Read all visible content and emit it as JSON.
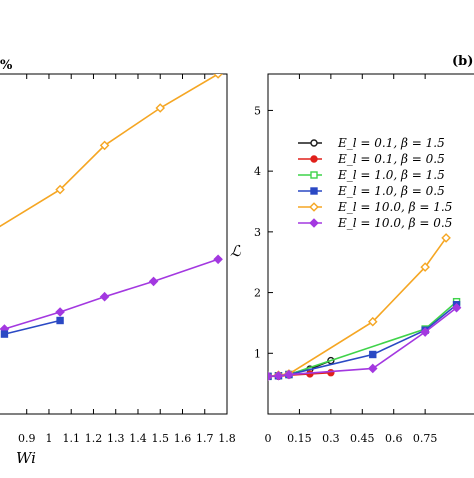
{
  "chart_data": [
    {
      "panel": "a",
      "type": "line",
      "title": "%",
      "xlabel": "Wi",
      "ylabel": "",
      "xlim": [
        0.78,
        1.8
      ],
      "ylim": [
        0,
        10
      ],
      "x_ticks": [
        "0.9",
        "1",
        "1.1",
        "1.2",
        "1.3",
        "1.4",
        "1.5",
        "1.6",
        "1.7",
        "1.8"
      ],
      "grid": false,
      "series": [
        {
          "color": "#f5a623",
          "marker": "diamond-open",
          "x": [
            0.7,
            1.05,
            1.25,
            1.5,
            1.76
          ],
          "y": [
            5.2,
            6.6,
            7.9,
            9.0,
            10.0
          ]
        },
        {
          "color": "#a338e0",
          "marker": "diamond-filled",
          "x": [
            0.8,
            1.05,
            1.25,
            1.47,
            1.76
          ],
          "y": [
            2.5,
            3.0,
            3.45,
            3.9,
            4.55
          ]
        },
        {
          "color": "#2a49c4",
          "marker": "square-filled",
          "x": [
            0.8,
            1.05
          ],
          "y": [
            2.35,
            2.75
          ]
        }
      ]
    },
    {
      "panel": "b",
      "type": "line",
      "panel_label": "(b)",
      "xlabel": "",
      "ylabel": "ℒ",
      "xlim": [
        0,
        1.05
      ],
      "ylim": [
        0,
        5.6
      ],
      "x_ticks": [
        "0",
        "0.15",
        "0.3",
        "0.45",
        "0.6",
        "0.75"
      ],
      "y_ticks": [
        "1",
        "2",
        "3",
        "4",
        "5"
      ],
      "grid": false,
      "legend_position": "upper-left",
      "series": [
        {
          "name": "E_l = 0.1, β = 1.5",
          "color": "#1a1a1a",
          "marker": "circle-open",
          "x": [
            0,
            0.05,
            0.1,
            0.2,
            0.3
          ],
          "y": [
            0.62,
            0.63,
            0.66,
            0.74,
            0.88
          ]
        },
        {
          "name": "E_l = 0.1, β = 0.5",
          "color": "#e0201b",
          "marker": "circle-filled",
          "x": [
            0,
            0.05,
            0.1,
            0.2,
            0.3
          ],
          "y": [
            0.62,
            0.62,
            0.64,
            0.66,
            0.68
          ]
        },
        {
          "name": "E_l = 1.0, β = 1.5",
          "color": "#3fd34a",
          "marker": "square-open",
          "x": [
            0,
            0.05,
            0.1,
            0.75,
            0.9
          ],
          "y": [
            0.62,
            0.63,
            0.65,
            1.4,
            1.85
          ]
        },
        {
          "name": "E_l = 1.0, β = 0.5",
          "color": "#2a49c4",
          "marker": "square-filled",
          "x": [
            0,
            0.05,
            0.1,
            0.5,
            0.75,
            0.9
          ],
          "y": [
            0.62,
            0.63,
            0.65,
            0.98,
            1.38,
            1.8
          ]
        },
        {
          "name": "E_l = 10.0, β = 1.5",
          "color": "#f5a623",
          "marker": "diamond-open",
          "x": [
            0,
            0.05,
            0.1,
            0.5,
            0.75,
            0.85
          ],
          "y": [
            0.62,
            0.64,
            0.66,
            1.52,
            2.42,
            2.9
          ]
        },
        {
          "name": "E_l = 10.0, β = 0.5",
          "color": "#a338e0",
          "marker": "diamond-filled",
          "x": [
            0,
            0.05,
            0.1,
            0.5,
            0.75,
            0.9
          ],
          "y": [
            0.62,
            0.63,
            0.65,
            0.75,
            1.35,
            1.75
          ]
        }
      ]
    }
  ]
}
